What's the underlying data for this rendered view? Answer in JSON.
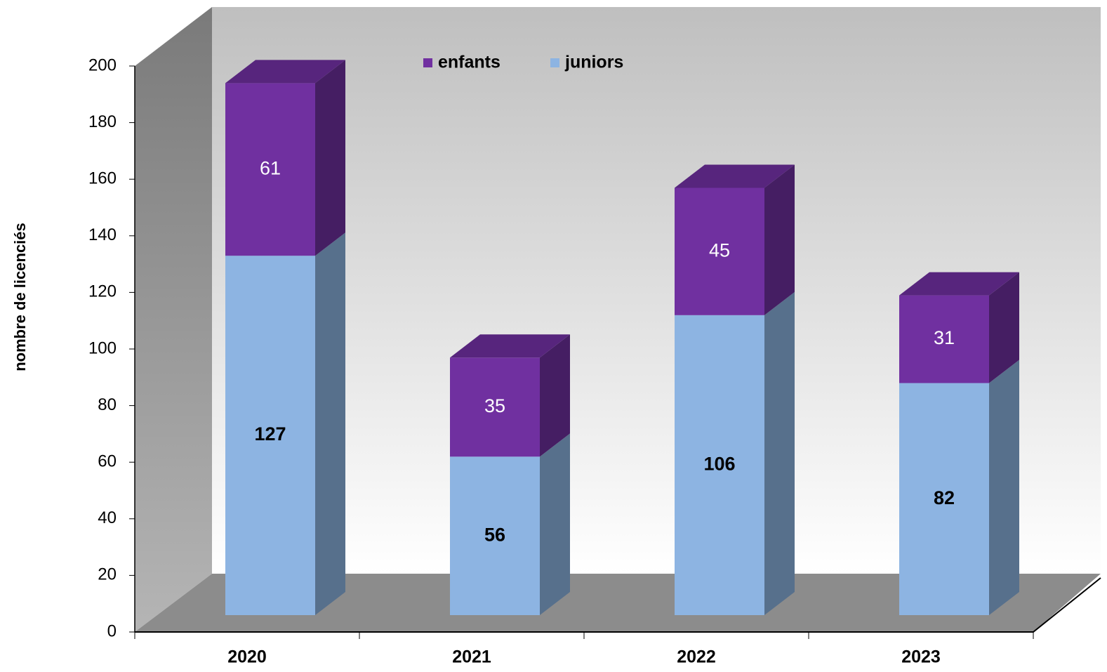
{
  "chart_data": {
    "type": "bar3d_stacked",
    "y_label": "nombre de licenciés",
    "categories": [
      "2020",
      "2021",
      "2022",
      "2023"
    ],
    "series": [
      {
        "name": "enfants",
        "color": "#7030a0",
        "values": [
          61,
          35,
          45,
          31
        ]
      },
      {
        "name": "juniors",
        "color": "#8db4e2",
        "values": [
          127,
          56,
          106,
          82
        ]
      }
    ],
    "ylim": [
      0,
      200
    ],
    "yticks": [
      0,
      20,
      40,
      60,
      80,
      100,
      120,
      140,
      160,
      180,
      200
    ],
    "legend": "top"
  }
}
